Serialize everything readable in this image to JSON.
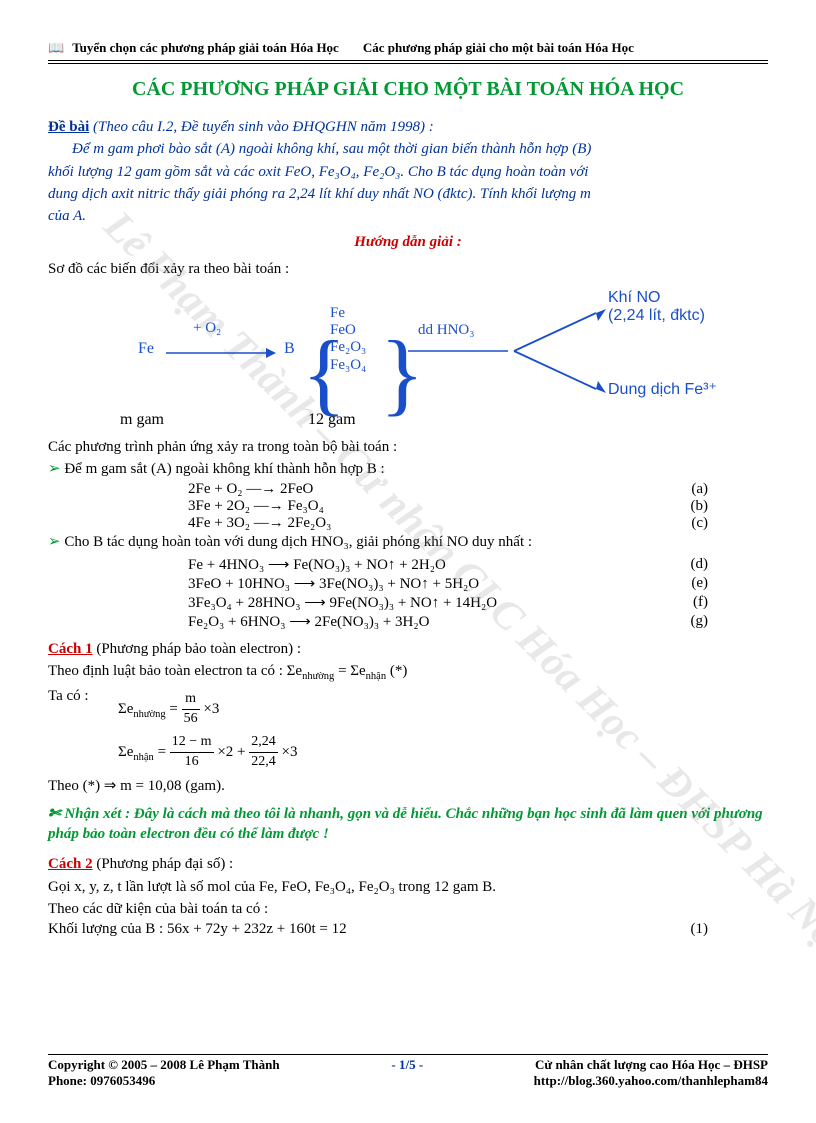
{
  "header": {
    "left": "Tuyển chọn các phương pháp giải toán Hóa Học",
    "right": "Các phương pháp giải cho một bài toán Hóa Học",
    "icon_name": "notebook-icon"
  },
  "title": "CÁC PHƯƠNG PHÁP GIẢI CHO MỘT BÀI TOÁN HÓA HỌC",
  "debai_label": "Đề bài",
  "debai_src": "(Theo câu I.2, Đề tuyển sinh vào ĐHQGHN năm 1998) :",
  "debai_body1": "Để m gam phơi bào sắt (A) ngoài không khí, sau một thời gian biến thành hỗn hợp (B)",
  "debai_body2": "khối lượng 12 gam gồm sắt và các oxit FeO, Fe₃O₄, Fe₂O₃. Cho B tác dụng hoàn toàn với",
  "debai_body3": "dung dịch axit nitric thấy giải phóng ra 2,24 lít khí duy nhất NO (đktc). Tính khối lượng m",
  "debai_body4": "của A.",
  "hdgiai": "Hướng dẫn giải :",
  "so_do": "Sơ đồ các biến đổi xảy ra theo bài toán :",
  "diagram": {
    "fe": "Fe",
    "plus_o2": "+ O₂",
    "B": "B",
    "stack": [
      "Fe",
      "FeO",
      "Fe₂O₃",
      "Fe₃O₄"
    ],
    "dd": "dd HNO₃",
    "out1": "Khí NO",
    "out1_sub": "(2,24 lít, đktc)",
    "out2": "Dung dịch Fe³⁺",
    "m_left": "m gam",
    "m_mid": "12 gam",
    "arrow_color": "#1a4fcc"
  },
  "pt_intro": "Các phương trình phản ứng xảy ra trong toàn bộ bài toán :",
  "pt_sec1": "Để m gam sắt (A) ngoài không khí thành hỗn hợp B :",
  "eqs1": [
    {
      "text": "2Fe + O₂  ⟶  2FeO",
      "label": "(a)",
      "cond": "tº"
    },
    {
      "text": "3Fe + 2O₂  ⟶  Fe₃O₄",
      "label": "(b)",
      "cond": "tº"
    },
    {
      "text": "4Fe + 3O₂  ⟶  2Fe₂O₃",
      "label": "(c)",
      "cond": "tº"
    }
  ],
  "pt_sec2": "Cho B tác dụng hoàn toàn với dung dịch HNO₃, giải phóng khí NO duy nhất :",
  "eqs2": [
    {
      "text": "Fe +  4HNO₃  ⟶  Fe(NO₃)₃ + NO↑ + 2H₂O",
      "label": "(d)"
    },
    {
      "text": "3FeO +  10HNO₃  ⟶  3Fe(NO₃)₃ + NO↑ + 5H₂O",
      "label": "(e)"
    },
    {
      "text": "3Fe₃O₄ +  28HNO₃  ⟶  9Fe(NO₃)₃ + NO↑ + 14H₂O",
      "label": "(f)"
    },
    {
      "text": "Fe₂O₃ +  6HNO₃  ⟶  2Fe(NO₃)₃ + 3H₂O",
      "label": "(g)"
    }
  ],
  "cach1_label": "Cách 1",
  "cach1_desc": "(Phương pháp bảo toàn electron) :",
  "cach1_line1": "Theo định luật bảo toàn electron ta có : Σe",
  "cach1_line1_sub1": "nhường",
  "cach1_line1_mid": " = Σe",
  "cach1_line1_sub2": "nhận",
  "cach1_line1_end": " (*)",
  "ta_co": "Ta có :",
  "frac1": {
    "lead": "Σe",
    "sub": "nhường",
    "eq": " = ",
    "num": "m",
    "den": "56",
    "tail": "×3"
  },
  "frac2": {
    "lead": "Σe",
    "sub": "nhận",
    "eq": " = ",
    "num1": "12 − m",
    "den1": "16",
    "mid": "×2 + ",
    "num2": "2,24",
    "den2": "22,4",
    "tail": "×3"
  },
  "cach1_result": "Theo (*) ⇒ m = 10,08 (gam).",
  "nhanxet": "Nhận xét : Đây là cách mà theo tôi là nhanh, gọn và dễ hiểu. Chắc những bạn học sinh đã làm quen với phương pháp bảo toàn electron đều có thể làm được !",
  "cach2_label": "Cách 2",
  "cach2_desc": "(Phương pháp đại số) :",
  "cach2_line1": "Gọi x, y, z, t lần lượt là số mol của Fe, FeO, Fe₃O₄, Fe₂O₃ trong 12 gam B.",
  "cach2_line2": "Theo các dữ kiện của bài toán ta có :",
  "cach2_eq": "Khối lượng của B : 56x + 72y + 232z + 160t = 12",
  "cach2_eq_label": "(1)",
  "footer": {
    "copy": "Copyright © 2005 – 2008 Lê Phạm Thành",
    "page": "- 1/5 -",
    "right1": "Cử nhân chất lượng cao Hóa Học – ĐHSP",
    "phone": "Phone: 0976053496",
    "url": "http://blog.360.yahoo.com/thanhlepham84"
  },
  "watermark": {
    "text": "Lê Phạm Thành – Cử nhân CLC Hóa Học – ĐHSP Hà Nội"
  },
  "colors": {
    "green": "#009933",
    "blue": "#1a4fcc",
    "red": "#cc0000",
    "darkblue": "#003399"
  }
}
